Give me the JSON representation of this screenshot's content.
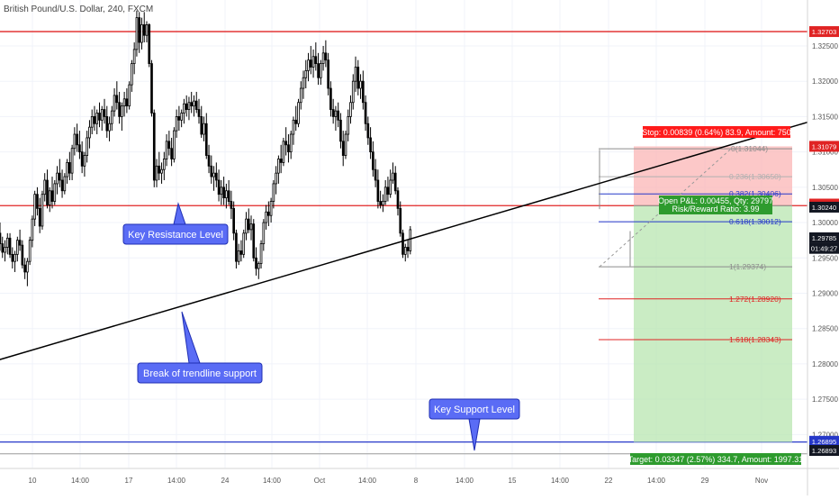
{
  "header": {
    "symbol_title": "British Pound/U.S. Dollar, 240, FXCM"
  },
  "chart_data": {
    "type": "candlestick",
    "ylim": [
      1.2652,
      1.3315
    ],
    "y_ticks": [
      "1.32500",
      "1.32000",
      "1.31500",
      "1.31000",
      "1.30500",
      "1.30000",
      "1.29500",
      "1.29000",
      "1.28500",
      "1.28000",
      "1.27500",
      "1.27000"
    ],
    "x_ticks": [
      "10",
      "14:00",
      "17",
      "14:00",
      "24",
      "14:00",
      "Oct",
      "14:00",
      "8",
      "14:00",
      "15",
      "14:00",
      "22",
      "14:00",
      "29",
      "Nov"
    ],
    "price_tags": [
      {
        "label": "1.32703",
        "value": 1.32703,
        "color": "#e02424"
      },
      {
        "label": "1.31079",
        "value": 1.31079,
        "color": "#e02424"
      },
      {
        "label": "1.30240",
        "value": 1.30262,
        "color": "#e02424"
      },
      {
        "label": "1.30240",
        "value": 1.30218,
        "color": "#131722"
      },
      {
        "label": "1.29785",
        "value": 1.29785,
        "color": "#131722"
      },
      {
        "label": "01:49:27",
        "value": 1.29635,
        "color": "#131722"
      },
      {
        "label": "1.26895",
        "value": 1.26905,
        "color": "#2638c9"
      },
      {
        "label": "1.26893",
        "value": 1.26775,
        "color": "#131722"
      }
    ],
    "levels": [
      {
        "name": "resistance-high",
        "value": 1.32703,
        "color": "#e02424"
      },
      {
        "name": "key-resistance",
        "value": 1.3024,
        "color": "#e02424"
      },
      {
        "name": "key-support",
        "value": 1.26895,
        "color": "#2638c9"
      }
    ],
    "trendline": {
      "from": {
        "date": "2018-09-06",
        "price": 1.28
      },
      "to": {
        "date": "2018-10-30",
        "price": 1.3142
      }
    },
    "fibonacci": [
      {
        "ratio": "0.236",
        "label": "0.236(1.30650)",
        "value": 1.3065,
        "color": "#b0b0b0"
      },
      {
        "ratio": "0.382",
        "label": "0.382(1.30406)",
        "value": 1.30406,
        "color": "#2638c9"
      },
      {
        "ratio": "0.618",
        "label": "0.618(1.30012)",
        "value": 1.30012,
        "color": "#2638c9"
      },
      {
        "ratio": "1",
        "label": "1(1.29374)",
        "value": 1.29374,
        "color": "#8c8c8c"
      },
      {
        "ratio": "1.272",
        "label": "1.272(1.28920)",
        "value": 1.2892,
        "color": "#e02424"
      },
      {
        "ratio": "1.618",
        "label": "1.618(1.28343)",
        "value": 1.28343,
        "color": "#e02424"
      }
    ],
    "fib_top": {
      "label": "0(1.31044)",
      "value": 1.31044
    },
    "position": {
      "stop_label": "Stop: 0.00839 (0.64%) 83.9, Amount: 750",
      "pnl_label": "Open P&L: 0.00455, Qty: 29797",
      "rr_label": "Risk/Reward Ratio: 3.99",
      "target_label": "Target: 0.03347 (2.57%) 334.7, Amount: 1997.31",
      "entry": 1.3024,
      "stop": 1.31079,
      "target": 1.26893
    },
    "annotations": [
      {
        "text": "Key Resistance Level"
      },
      {
        "text": "Break of trendline support"
      },
      {
        "text": "Key Support Level"
      }
    ],
    "series": [
      [
        1.2985,
        1.3,
        1.296,
        1.297
      ],
      [
        1.297,
        1.298,
        1.295,
        1.2958
      ],
      [
        1.2958,
        1.2975,
        1.2945,
        1.2965
      ],
      [
        1.2965,
        1.2985,
        1.2955,
        1.2978
      ],
      [
        1.2978,
        1.2985,
        1.295,
        1.2955
      ],
      [
        1.2955,
        1.2965,
        1.2935,
        1.2945
      ],
      [
        1.2945,
        1.296,
        1.293,
        1.2955
      ],
      [
        1.2955,
        1.298,
        1.2945,
        1.2975
      ],
      [
        1.2975,
        1.299,
        1.296,
        1.2968
      ],
      [
        1.2968,
        1.2975,
        1.2935,
        1.294
      ],
      [
        1.294,
        1.295,
        1.292,
        1.293
      ],
      [
        1.293,
        1.295,
        1.291,
        1.2945
      ],
      [
        1.2945,
        1.298,
        1.294,
        1.2975
      ],
      [
        1.2975,
        1.301,
        1.2965,
        1.3005
      ],
      [
        1.3005,
        1.3045,
        1.2995,
        1.304
      ],
      [
        1.304,
        1.305,
        1.301,
        1.302
      ],
      [
        1.302,
        1.3035,
        1.2985,
        1.2995
      ],
      [
        1.2995,
        1.3045,
        1.299,
        1.304
      ],
      [
        1.304,
        1.307,
        1.303,
        1.306
      ],
      [
        1.306,
        1.3075,
        1.302,
        1.3025
      ],
      [
        1.3025,
        1.305,
        1.3015,
        1.3045
      ],
      [
        1.3045,
        1.3065,
        1.302,
        1.303
      ],
      [
        1.303,
        1.306,
        1.3025,
        1.3055
      ],
      [
        1.3055,
        1.308,
        1.304,
        1.307
      ],
      [
        1.307,
        1.309,
        1.305,
        1.306
      ],
      [
        1.306,
        1.3075,
        1.3035,
        1.3045
      ],
      [
        1.3045,
        1.307,
        1.304,
        1.3065
      ],
      [
        1.3065,
        1.309,
        1.3055,
        1.3085
      ],
      [
        1.3085,
        1.31,
        1.306,
        1.307
      ],
      [
        1.307,
        1.311,
        1.306,
        1.3105
      ],
      [
        1.3105,
        1.3135,
        1.3095,
        1.3125
      ],
      [
        1.3125,
        1.314,
        1.31,
        1.311
      ],
      [
        1.311,
        1.313,
        1.309,
        1.31
      ],
      [
        1.31,
        1.3115,
        1.307,
        1.308
      ],
      [
        1.308,
        1.31,
        1.3065,
        1.3095
      ],
      [
        1.3095,
        1.313,
        1.3085,
        1.312
      ],
      [
        1.312,
        1.3145,
        1.3105,
        1.3135
      ],
      [
        1.3135,
        1.316,
        1.3125,
        1.315
      ],
      [
        1.315,
        1.3165,
        1.313,
        1.314
      ],
      [
        1.314,
        1.316,
        1.3125,
        1.3155
      ],
      [
        1.3155,
        1.317,
        1.3135,
        1.3145
      ],
      [
        1.3145,
        1.3165,
        1.313,
        1.316
      ],
      [
        1.316,
        1.3175,
        1.314,
        1.315
      ],
      [
        1.315,
        1.3165,
        1.312,
        1.313
      ],
      [
        1.313,
        1.315,
        1.3115,
        1.314
      ],
      [
        1.314,
        1.3165,
        1.313,
        1.3158
      ],
      [
        1.3158,
        1.319,
        1.315,
        1.318
      ],
      [
        1.318,
        1.32,
        1.316,
        1.317
      ],
      [
        1.317,
        1.3185,
        1.314,
        1.315
      ],
      [
        1.315,
        1.317,
        1.313,
        1.3165
      ],
      [
        1.3165,
        1.3185,
        1.315,
        1.3175
      ],
      [
        1.3175,
        1.319,
        1.3155,
        1.3165
      ],
      [
        1.3165,
        1.32,
        1.316,
        1.3195
      ],
      [
        1.3195,
        1.323,
        1.3185,
        1.3225
      ],
      [
        1.3225,
        1.3255,
        1.321,
        1.3245
      ],
      [
        1.3245,
        1.33,
        1.3235,
        1.329
      ],
      [
        1.329,
        1.3298,
        1.324,
        1.3255
      ],
      [
        1.3255,
        1.329,
        1.3245,
        1.328
      ],
      [
        1.328,
        1.3298,
        1.3255,
        1.3265
      ],
      [
        1.3265,
        1.3285,
        1.3255,
        1.328
      ],
      [
        1.328,
        1.3282,
        1.322,
        1.3225
      ],
      [
        1.3225,
        1.323,
        1.315,
        1.3155
      ],
      [
        1.3155,
        1.316,
        1.305,
        1.306
      ],
      [
        1.306,
        1.309,
        1.305,
        1.308
      ],
      [
        1.308,
        1.31,
        1.306,
        1.307
      ],
      [
        1.307,
        1.3085,
        1.3055,
        1.3075
      ],
      [
        1.3075,
        1.31,
        1.306,
        1.309
      ],
      [
        1.309,
        1.3125,
        1.308,
        1.3115
      ],
      [
        1.3115,
        1.313,
        1.3095,
        1.3105
      ],
      [
        1.3105,
        1.312,
        1.308,
        1.309
      ],
      [
        1.309,
        1.3135,
        1.3085,
        1.313
      ],
      [
        1.313,
        1.316,
        1.312,
        1.315
      ],
      [
        1.315,
        1.3165,
        1.313,
        1.3145
      ],
      [
        1.3145,
        1.316,
        1.3135,
        1.3155
      ],
      [
        1.3155,
        1.3175,
        1.314,
        1.3168
      ],
      [
        1.3168,
        1.318,
        1.315,
        1.316
      ],
      [
        1.316,
        1.3178,
        1.3145,
        1.317
      ],
      [
        1.317,
        1.3185,
        1.3155,
        1.3165
      ],
      [
        1.3165,
        1.318,
        1.315,
        1.3172
      ],
      [
        1.3172,
        1.3185,
        1.3155,
        1.316
      ],
      [
        1.316,
        1.3175,
        1.314,
        1.315
      ],
      [
        1.315,
        1.3165,
        1.312,
        1.3125
      ],
      [
        1.3125,
        1.315,
        1.3115,
        1.314
      ],
      [
        1.314,
        1.3155,
        1.309,
        1.3095
      ],
      [
        1.3095,
        1.311,
        1.307,
        1.308
      ],
      [
        1.308,
        1.3095,
        1.3055,
        1.3065
      ],
      [
        1.3065,
        1.308,
        1.3045,
        1.307
      ],
      [
        1.307,
        1.3085,
        1.305,
        1.306
      ],
      [
        1.306,
        1.3075,
        1.303,
        1.304
      ],
      [
        1.304,
        1.306,
        1.3025,
        1.305
      ],
      [
        1.305,
        1.3065,
        1.3025,
        1.3035
      ],
      [
        1.3035,
        1.3055,
        1.302,
        1.3045
      ],
      [
        1.3045,
        1.306,
        1.3025,
        1.303
      ],
      [
        1.303,
        1.3045,
        1.3005,
        1.302
      ],
      [
        1.302,
        1.303,
        1.2975,
        1.2985
      ],
      [
        1.2985,
        1.299,
        1.2935,
        1.2945
      ],
      [
        1.2945,
        1.297,
        1.294,
        1.296
      ],
      [
        1.296,
        1.2975,
        1.2945,
        1.2955
      ],
      [
        1.2955,
        1.299,
        1.295,
        1.2985
      ],
      [
        1.2985,
        1.3015,
        1.2975,
        1.3005
      ],
      [
        1.3005,
        1.302,
        1.2985,
        1.299
      ],
      [
        1.299,
        1.301,
        1.2975,
        1.2998
      ],
      [
        1.2998,
        1.3005,
        1.2945,
        1.295
      ],
      [
        1.295,
        1.2965,
        1.2925,
        1.2935
      ],
      [
        1.2935,
        1.2945,
        1.292,
        1.2942
      ],
      [
        1.2942,
        1.2975,
        1.2935,
        1.297
      ],
      [
        1.297,
        1.3005,
        1.296,
        1.3
      ],
      [
        1.3,
        1.3025,
        1.299,
        1.3015
      ],
      [
        1.3015,
        1.303,
        1.2995,
        1.301
      ],
      [
        1.301,
        1.3035,
        1.3,
        1.303
      ],
      [
        1.303,
        1.306,
        1.302,
        1.3055
      ],
      [
        1.3055,
        1.308,
        1.304,
        1.307
      ],
      [
        1.307,
        1.3095,
        1.3055,
        1.309
      ],
      [
        1.309,
        1.311,
        1.307,
        1.3085
      ],
      [
        1.3085,
        1.312,
        1.308,
        1.3115
      ],
      [
        1.3115,
        1.3135,
        1.3095,
        1.311
      ],
      [
        1.311,
        1.3125,
        1.3085,
        1.31
      ],
      [
        1.31,
        1.313,
        1.309,
        1.3125
      ],
      [
        1.3125,
        1.315,
        1.311,
        1.3145
      ],
      [
        1.3145,
        1.3165,
        1.313,
        1.314
      ],
      [
        1.314,
        1.3175,
        1.3135,
        1.317
      ],
      [
        1.317,
        1.32,
        1.316,
        1.319
      ],
      [
        1.319,
        1.3215,
        1.3175,
        1.3205
      ],
      [
        1.3205,
        1.323,
        1.319,
        1.3215
      ],
      [
        1.3215,
        1.324,
        1.32,
        1.323
      ],
      [
        1.323,
        1.325,
        1.321,
        1.322
      ],
      [
        1.322,
        1.3245,
        1.3205,
        1.3235
      ],
      [
        1.3235,
        1.3255,
        1.3215,
        1.3225
      ],
      [
        1.3225,
        1.324,
        1.3195,
        1.3205
      ],
      [
        1.3205,
        1.323,
        1.3195,
        1.3225
      ],
      [
        1.3225,
        1.325,
        1.3215,
        1.324
      ],
      [
        1.324,
        1.3258,
        1.322,
        1.323
      ],
      [
        1.323,
        1.324,
        1.318,
        1.319
      ],
      [
        1.319,
        1.32,
        1.315,
        1.316
      ],
      [
        1.316,
        1.3175,
        1.314,
        1.315
      ],
      [
        1.315,
        1.3165,
        1.313,
        1.3158
      ],
      [
        1.3158,
        1.317,
        1.3135,
        1.3145
      ],
      [
        1.3145,
        1.3155,
        1.3105,
        1.3115
      ],
      [
        1.3115,
        1.313,
        1.308,
        1.3095
      ],
      [
        1.3095,
        1.313,
        1.309,
        1.3125
      ],
      [
        1.3125,
        1.316,
        1.3115,
        1.315
      ],
      [
        1.315,
        1.318,
        1.314,
        1.317
      ],
      [
        1.317,
        1.321,
        1.316,
        1.32
      ],
      [
        1.32,
        1.3235,
        1.3185,
        1.322
      ],
      [
        1.322,
        1.323,
        1.318,
        1.319
      ],
      [
        1.319,
        1.321,
        1.3175,
        1.32
      ],
      [
        1.32,
        1.3215,
        1.316,
        1.317
      ],
      [
        1.317,
        1.318,
        1.313,
        1.314
      ],
      [
        1.314,
        1.315,
        1.311,
        1.312
      ],
      [
        1.312,
        1.3135,
        1.309,
        1.31
      ],
      [
        1.31,
        1.3115,
        1.3065,
        1.3075
      ],
      [
        1.3075,
        1.309,
        1.305,
        1.306
      ],
      [
        1.306,
        1.3075,
        1.302,
        1.303
      ],
      [
        1.303,
        1.3045,
        1.302,
        1.3025
      ],
      [
        1.3025,
        1.304,
        1.3015,
        1.303
      ],
      [
        1.303,
        1.306,
        1.3025,
        1.305
      ],
      [
        1.305,
        1.3065,
        1.303,
        1.304
      ],
      [
        1.304,
        1.3075,
        1.3035,
        1.306
      ],
      [
        1.306,
        1.3085,
        1.3055,
        1.307
      ],
      [
        1.307,
        1.308,
        1.304,
        1.3045
      ],
      [
        1.3045,
        1.305,
        1.301,
        1.302
      ],
      [
        1.302,
        1.303,
        1.298,
        1.2985
      ],
      [
        1.2985,
        1.299,
        1.295,
        1.2955
      ],
      [
        1.2955,
        1.297,
        1.2945,
        1.2965
      ],
      [
        1.2965,
        1.2975,
        1.295,
        1.296
      ],
      [
        1.296,
        1.2995,
        1.2955,
        1.299
      ]
    ]
  }
}
